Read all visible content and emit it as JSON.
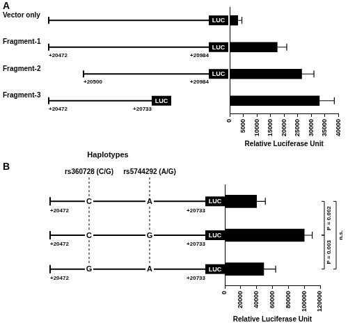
{
  "chart_data": [
    {
      "type": "bar",
      "panel_label": "A",
      "orientation": "horizontal",
      "categories": [
        "Vector only",
        "Fragment-1",
        "Fragment-2",
        "Fragment-3"
      ],
      "values": [
        3000,
        17500,
        26500,
        33000
      ],
      "errors": [
        1500,
        3500,
        4500,
        5500
      ],
      "constructs": [
        {
          "start_label": null,
          "end_label": null
        },
        {
          "start_label": "+20472",
          "end_label": "+20984"
        },
        {
          "start_label": "+20500",
          "end_label": "+20984"
        },
        {
          "start_label": "+20472",
          "end_label": "+20733"
        }
      ],
      "reporter_label": "LUC",
      "x_label": "Relative Luciferase Unit",
      "xlim": [
        0,
        40000
      ],
      "xticks": [
        0,
        5000,
        10000,
        15000,
        20000,
        25000,
        30000,
        35000,
        40000
      ],
      "color": "#000000",
      "grid": false,
      "tick_labels": "x"
    },
    {
      "type": "bar",
      "panel_label": "B",
      "orientation": "horizontal",
      "title": "Haplotypes",
      "snps": [
        "rs360728 (C/G)",
        "rs5744292 (A/G)"
      ],
      "categories": [
        null,
        null,
        null
      ],
      "haplotypes": [
        [
          "C",
          "A"
        ],
        [
          "C",
          "G"
        ],
        [
          "G",
          "A"
        ]
      ],
      "values": [
        40000,
        100000,
        49000
      ],
      "errors": [
        11000,
        10000,
        15000
      ],
      "start_label": "+20472",
      "end_label": "+20733",
      "reporter_label": "LUC",
      "comparisons": [
        {
          "rows": [
            0,
            1
          ],
          "label": "P = 0.002"
        },
        {
          "rows": [
            1,
            2
          ],
          "label": "P = 0.003"
        },
        {
          "rows": [
            0,
            2
          ],
          "label": "n.s."
        }
      ],
      "x_label": "Relative Luciferase Unit",
      "xlim": [
        0,
        120000
      ],
      "xticks": [
        0,
        20000,
        40000,
        60000,
        80000,
        100000,
        120000
      ],
      "color": "#000000",
      "grid": false,
      "tick_labels": "x"
    }
  ]
}
